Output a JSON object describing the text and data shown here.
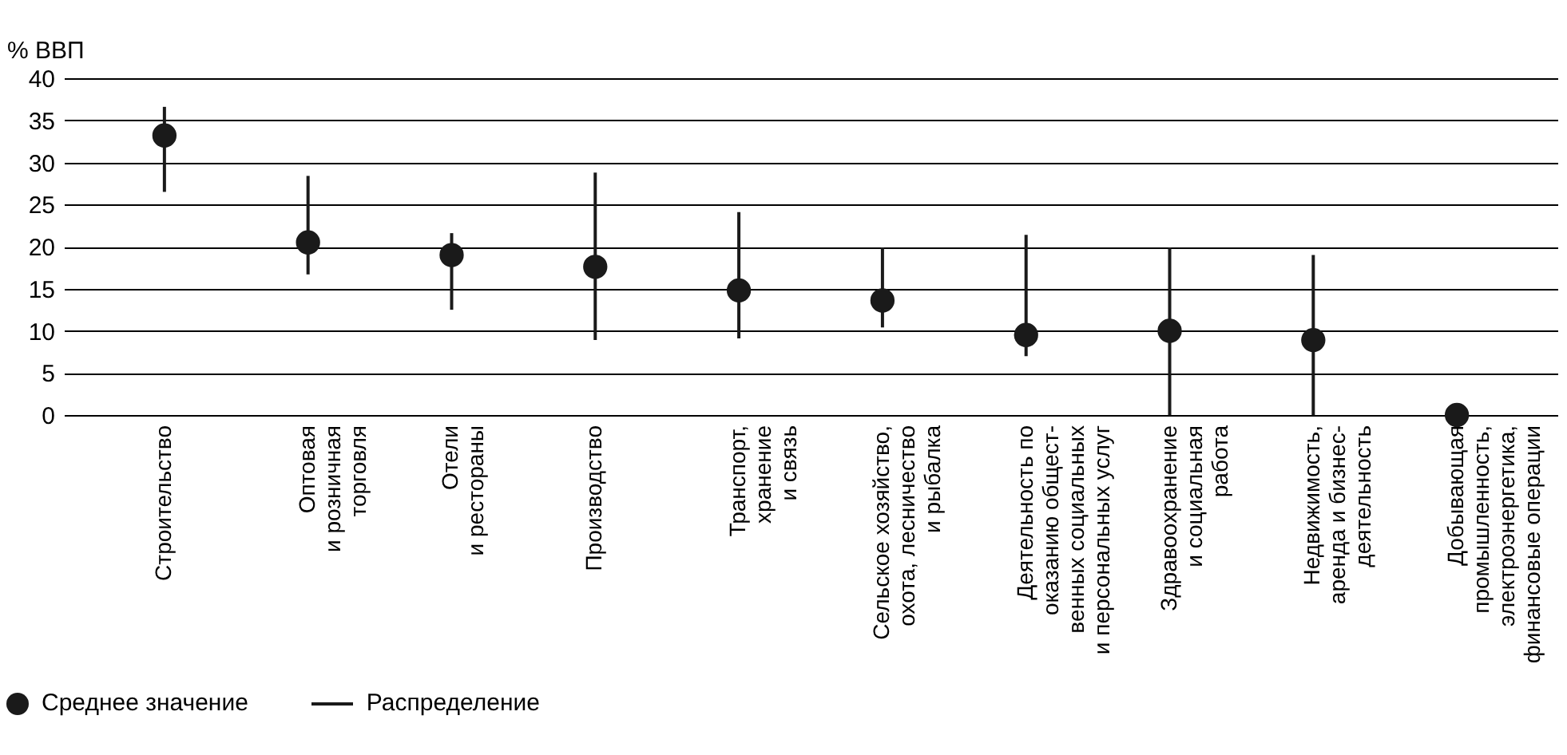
{
  "chart_data": {
    "type": "scatter",
    "ylabel": "% ВВП",
    "categories": [
      "Строительство",
      "Оптовая\nи розничная\nторговля",
      "Отели\nи рестораны",
      "Производство",
      "Транспорт,\nхранение\nи связь",
      "Сельское хозяйство,\nохота, лесничество\nи рыбалка",
      "Деятельность по\nоказанию общест-\nвенных социальных\nи персональных услуг",
      "Здравоохранение\nи социальная\nработа",
      "Недвижимость,\nаренда и бизнес-\nдеятельность",
      "Добывающая\nпромышленность,\nэлектроэнергетика,\nфинансовые операции"
    ],
    "series": [
      {
        "name": "Среднее значение",
        "color": "#1a1a1a",
        "values": [
          33.2,
          20.5,
          19,
          17.6,
          14.8,
          13.6,
          9.5,
          10,
          8.9,
          0
        ],
        "errors": [
          [
            26.5,
            36.6
          ],
          [
            16.7,
            28.4
          ],
          [
            12.5,
            21.6
          ],
          [
            8.9,
            28.8
          ],
          [
            9.1,
            24.1
          ],
          [
            10.4,
            19.9
          ],
          [
            7,
            21.4
          ],
          [
            0,
            19.9
          ],
          [
            0,
            19
          ],
          null
        ]
      }
    ],
    "annotations": [
      "Распределение"
    ],
    "ylim": [
      0,
      40
    ],
    "yticks": [
      0,
      5,
      10,
      15,
      20,
      25,
      30,
      35,
      40
    ],
    "grid": "y",
    "marker": "circle",
    "legend": "bottom left"
  }
}
